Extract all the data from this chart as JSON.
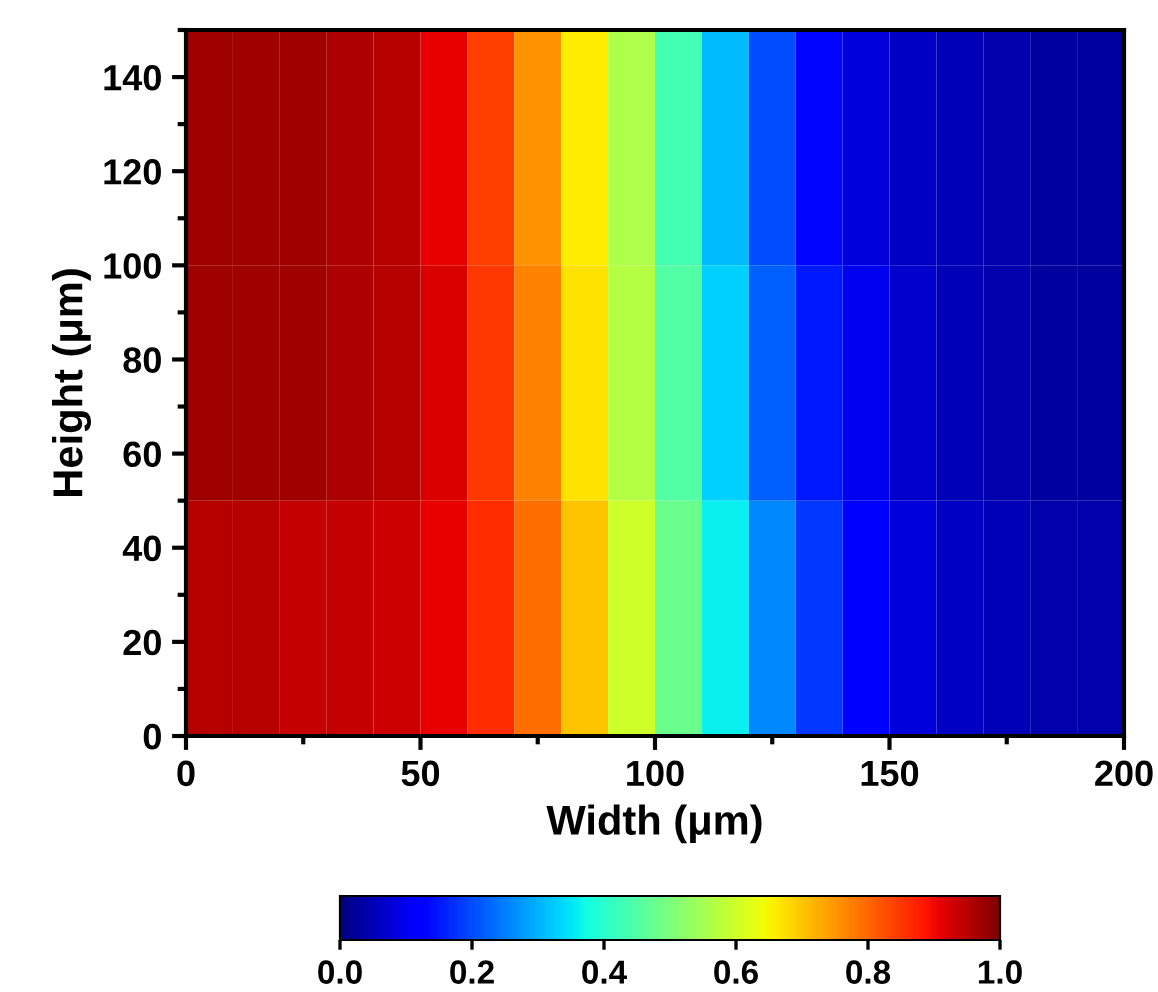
{
  "chart_data": {
    "type": "heatmap",
    "xlabel": "Width (μm)",
    "ylabel": "Height (μm)",
    "x": [
      5,
      15,
      25,
      35,
      45,
      55,
      65,
      75,
      85,
      95,
      105,
      115,
      125,
      135,
      145,
      155,
      165,
      175,
      185,
      195
    ],
    "y": [
      125,
      75,
      25
    ],
    "cells": [
      [
        0.97,
        0.97,
        0.97,
        0.96,
        0.95,
        0.91,
        0.84,
        0.75,
        0.66,
        0.56,
        0.43,
        0.31,
        0.2,
        0.13,
        0.08,
        0.06,
        0.05,
        0.04,
        0.03,
        0.03
      ],
      [
        0.97,
        0.97,
        0.97,
        0.96,
        0.95,
        0.92,
        0.85,
        0.77,
        0.67,
        0.57,
        0.45,
        0.33,
        0.22,
        0.15,
        0.1,
        0.07,
        0.05,
        0.04,
        0.03,
        0.03
      ],
      [
        0.95,
        0.95,
        0.94,
        0.94,
        0.93,
        0.91,
        0.86,
        0.79,
        0.7,
        0.6,
        0.48,
        0.36,
        0.26,
        0.18,
        0.12,
        0.08,
        0.06,
        0.05,
        0.04,
        0.04
      ]
    ],
    "xlim": [
      0,
      200
    ],
    "xticks": [
      0,
      50,
      100,
      150,
      200
    ],
    "ylim": [
      0,
      150
    ],
    "yticks": [
      0,
      20,
      40,
      60,
      80,
      100,
      120,
      140
    ],
    "clim": [
      0,
      1
    ],
    "cticks": [
      {
        "value": 0,
        "label": "0.0"
      },
      {
        "value": 0.2,
        "label": "0.2"
      },
      {
        "value": 0.4,
        "label": "0.4"
      },
      {
        "value": 0.6,
        "label": "0.6"
      },
      {
        "value": 0.8,
        "label": "0.8"
      },
      {
        "value": 1,
        "label": "1.0"
      }
    ],
    "grid": false
  }
}
